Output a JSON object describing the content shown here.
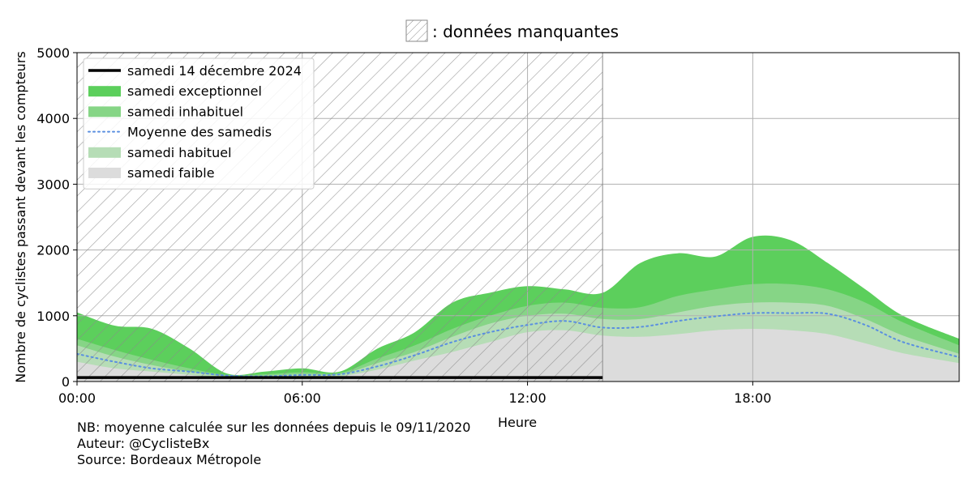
{
  "header": {
    "missing_legend_label": ": données manquantes"
  },
  "notes": {
    "nb": "NB: moyenne calculée sur les données depuis le 09/11/2020",
    "author": "Auteur: @CyclisteBx",
    "source": "Source: Bordeaux Métropole"
  },
  "chart_data": {
    "type": "area",
    "xlabel": "Heure",
    "ylabel": "Nombre de cyclistes passant devant les compteurs",
    "xlim": [
      0,
      23.5
    ],
    "ylim": [
      0,
      5000
    ],
    "x_ticks": [
      0,
      6,
      12,
      18
    ],
    "x_tick_labels": [
      "00:00",
      "06:00",
      "12:00",
      "18:00"
    ],
    "y_ticks": [
      0,
      1000,
      2000,
      3000,
      4000,
      5000
    ],
    "y_tick_labels": [
      "0",
      "1000",
      "2000",
      "3000",
      "4000",
      "5000"
    ],
    "grid": true,
    "legend_position": "top-left",
    "missing_data_range": [
      0,
      14
    ],
    "x": [
      0,
      1,
      2,
      3,
      4,
      5,
      6,
      7,
      8,
      9,
      10,
      11,
      12,
      13,
      14,
      15,
      16,
      17,
      18,
      19,
      20,
      21,
      22,
      23.5
    ],
    "series": [
      {
        "name": "samedi exceptionnel",
        "kind": "band",
        "color": "#5ccf5c",
        "values": [
          1050,
          850,
          800,
          500,
          120,
          150,
          200,
          150,
          500,
          750,
          1200,
          1350,
          1450,
          1400,
          1350,
          1800,
          1950,
          1900,
          2200,
          2150,
          1800,
          1400,
          1000,
          650
        ]
      },
      {
        "name": "samedi inhabituel",
        "kind": "band",
        "color": "#86d586",
        "values": [
          650,
          480,
          330,
          200,
          100,
          110,
          140,
          130,
          350,
          550,
          800,
          1000,
          1150,
          1200,
          1120,
          1130,
          1300,
          1400,
          1480,
          1480,
          1400,
          1200,
          900,
          550
        ]
      },
      {
        "name": "samedi habituel",
        "kind": "band",
        "color": "#b6ddb6",
        "values": [
          550,
          380,
          250,
          150,
          80,
          90,
          110,
          110,
          280,
          450,
          680,
          880,
          1000,
          1030,
          950,
          950,
          1050,
          1150,
          1200,
          1200,
          1150,
          950,
          700,
          420
        ]
      },
      {
        "name": "samedi faible",
        "kind": "band",
        "color": "#dcdcdc",
        "values": [
          300,
          200,
          150,
          100,
          50,
          50,
          70,
          80,
          180,
          320,
          450,
          600,
          750,
          780,
          700,
          680,
          720,
          780,
          800,
          780,
          720,
          580,
          430,
          280
        ]
      },
      {
        "name": "Moyenne des samedis",
        "kind": "line",
        "color": "#5a8fe0",
        "values": [
          420,
          300,
          200,
          150,
          90,
          80,
          100,
          110,
          230,
          400,
          600,
          750,
          860,
          920,
          820,
          830,
          920,
          990,
          1040,
          1040,
          1030,
          860,
          600,
          370
        ]
      },
      {
        "name": "samedi 14 décembre 2024",
        "kind": "line",
        "color": "#000000",
        "x": [
          0,
          14
        ],
        "values": [
          60,
          60
        ]
      }
    ],
    "legend_entries": [
      {
        "label": "samedi 14 décembre 2024",
        "style": "line",
        "color": "#000000"
      },
      {
        "label": "samedi exceptionnel",
        "style": "patch",
        "color": "#5ccf5c"
      },
      {
        "label": "samedi inhabituel",
        "style": "patch",
        "color": "#86d586"
      },
      {
        "label": "Moyenne des samedis",
        "style": "dotted",
        "color": "#5a8fe0"
      },
      {
        "label": "samedi habituel",
        "style": "patch",
        "color": "#b6ddb6"
      },
      {
        "label": "samedi faible",
        "style": "patch",
        "color": "#dcdcdc"
      }
    ]
  }
}
